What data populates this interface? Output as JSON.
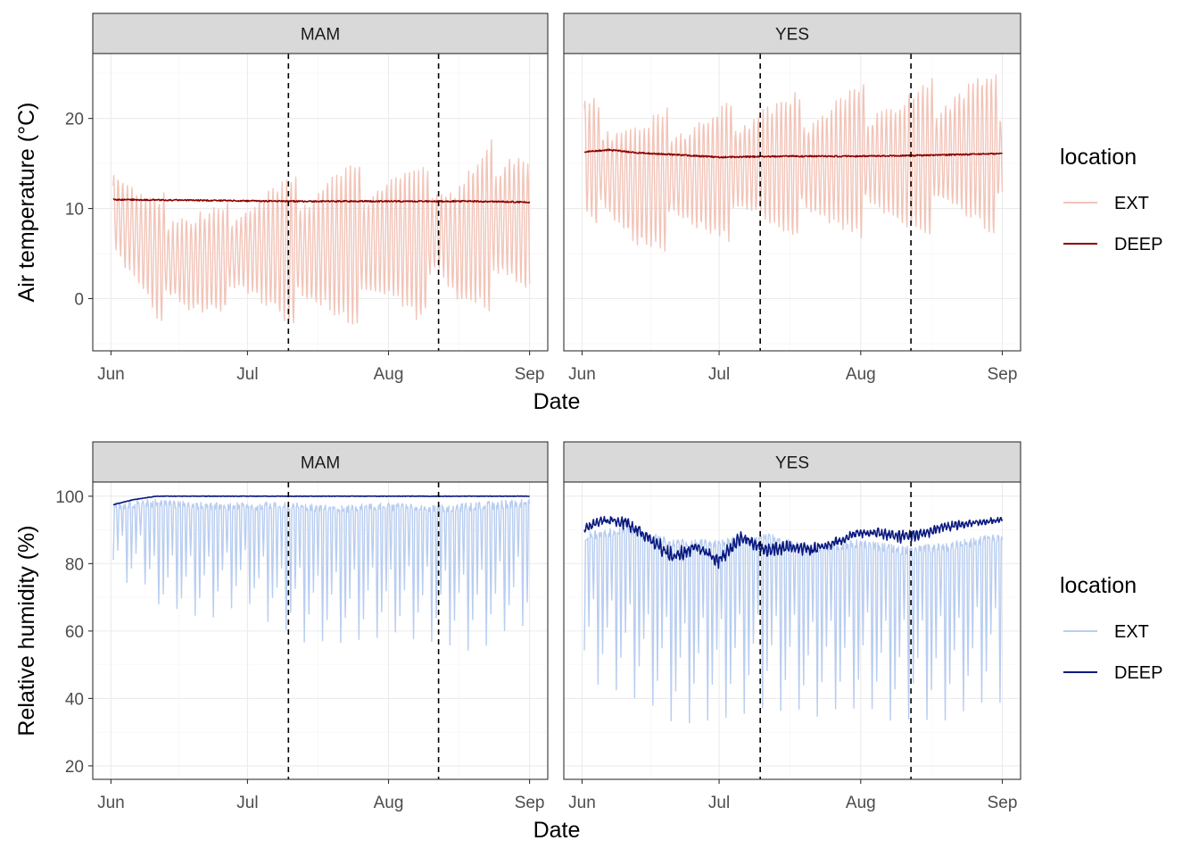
{
  "chart_data": [
    {
      "type": "line",
      "facet": "MAM",
      "xlabel": "Date",
      "ylabel": "Air temperature (°C)",
      "x_ticks": [
        "Jun",
        "Jul",
        "Aug",
        "Sep"
      ],
      "x_tick_days": [
        0,
        30,
        61,
        92
      ],
      "x_range_days": [
        -4,
        96
      ],
      "ylim": [
        -5.8,
        27.2
      ],
      "y_ticks": [
        0,
        10,
        20
      ],
      "vlines_days": [
        39,
        72
      ],
      "legend": {
        "title": "location",
        "entries": [
          "EXT",
          "DEEP"
        ]
      },
      "series": [
        {
          "name": "EXT",
          "color": "#f2c4b8",
          "kind": "oscillating",
          "start_day": 0.5,
          "end_day": 92,
          "base_days": [
            0,
            6,
            10,
            18,
            24,
            30,
            38,
            42,
            48,
            55,
            62,
            68,
            72,
            76,
            82,
            88,
            92
          ],
          "base_values": [
            10,
            7,
            4.5,
            4,
            4.5,
            5.5,
            5.5,
            5,
            6,
            6,
            7,
            6,
            7.5,
            6,
            8,
            9,
            8
          ],
          "amp_values": [
            6,
            5,
            6,
            6,
            5,
            6,
            7,
            7.5,
            8,
            8,
            7.5,
            7.5,
            6,
            7,
            8,
            9,
            8
          ]
        },
        {
          "name": "DEEP",
          "color": "#8b0000",
          "kind": "smooth",
          "start_day": 0.5,
          "end_day": 92,
          "base_days": [
            0,
            20,
            40,
            60,
            80,
            92
          ],
          "base_values": [
            11,
            10.9,
            10.8,
            10.8,
            10.8,
            10.7
          ]
        }
      ]
    },
    {
      "type": "line",
      "facet": "YES",
      "xlabel": "Date",
      "ylabel": "Air temperature (°C)",
      "x_ticks": [
        "Jun",
        "Jul",
        "Aug",
        "Sep"
      ],
      "x_tick_days": [
        0,
        30,
        61,
        92
      ],
      "x_range_days": [
        -4,
        96
      ],
      "ylim": [
        -5.8,
        27.2
      ],
      "y_ticks": [
        0,
        10,
        20
      ],
      "vlines_days": [
        39,
        72
      ],
      "legend": {
        "title": "location",
        "entries": [
          "EXT",
          "DEEP"
        ]
      },
      "series": [
        {
          "name": "EXT",
          "color": "#f2c4b8",
          "kind": "oscillating",
          "start_day": 0.5,
          "end_day": 92,
          "base_days": [
            0,
            6,
            12,
            20,
            30,
            40,
            50,
            60,
            70,
            80,
            86,
            92
          ],
          "base_values": [
            16,
            14,
            12.5,
            13.5,
            14,
            15,
            14.5,
            15.5,
            15,
            16,
            16.5,
            15.5
          ],
          "amp_values": [
            6,
            6.5,
            7,
            6.5,
            6.5,
            7,
            7,
            7.5,
            7.5,
            7.5,
            8,
            8
          ]
        },
        {
          "name": "DEEP",
          "color": "#8b0000",
          "kind": "smooth",
          "start_day": 0.5,
          "end_day": 92,
          "base_days": [
            0,
            6,
            12,
            30,
            45,
            60,
            75,
            92
          ],
          "base_values": [
            16.3,
            16.5,
            16.2,
            15.7,
            15.8,
            15.8,
            15.9,
            16.1
          ]
        }
      ]
    },
    {
      "type": "line",
      "facet": "MAM",
      "xlabel": "Date",
      "ylabel": "Relative humidity (%)",
      "x_ticks": [
        "Jun",
        "Jul",
        "Aug",
        "Sep"
      ],
      "x_tick_days": [
        0,
        30,
        61,
        92
      ],
      "x_range_days": [
        -4,
        96
      ],
      "ylim": [
        16,
        104.2
      ],
      "y_ticks": [
        20,
        40,
        60,
        80,
        100
      ],
      "vlines_days": [
        39,
        72
      ],
      "legend": {
        "title": "location",
        "entries": [
          "EXT",
          "DEEP"
        ]
      },
      "series": [
        {
          "name": "EXT",
          "color": "#b8cdf0",
          "kind": "humid",
          "start_day": 0.5,
          "end_day": 92,
          "base_days": [
            0,
            10,
            20,
            30,
            40,
            50,
            60,
            70,
            80,
            92
          ],
          "base_values": [
            97,
            98,
            97,
            97,
            97,
            96,
            97,
            96,
            97,
            98
          ],
          "amp_values": [
            22,
            28,
            30,
            26,
            36,
            38,
            36,
            36,
            40,
            34
          ]
        },
        {
          "name": "DEEP",
          "color": "#0a1a80",
          "kind": "smooth",
          "start_day": 0.5,
          "end_day": 92,
          "base_days": [
            0,
            5,
            10,
            20,
            40,
            92
          ],
          "base_values": [
            97.3,
            99,
            100,
            100,
            100,
            100
          ]
        }
      ]
    },
    {
      "type": "line",
      "facet": "YES",
      "xlabel": "Date",
      "ylabel": "Relative humidity (%)",
      "x_ticks": [
        "Jun",
        "Jul",
        "Aug",
        "Sep"
      ],
      "x_tick_days": [
        0,
        30,
        61,
        92
      ],
      "x_range_days": [
        -4,
        96
      ],
      "ylim": [
        16,
        104.2
      ],
      "y_ticks": [
        20,
        40,
        60,
        80,
        100
      ],
      "vlines_days": [
        39,
        72
      ],
      "legend": {
        "title": "location",
        "entries": [
          "EXT",
          "DEEP"
        ]
      },
      "series": [
        {
          "name": "EXT",
          "color": "#b8cdf0",
          "kind": "humid",
          "start_day": 0.5,
          "end_day": 92,
          "base_days": [
            0,
            10,
            20,
            30,
            40,
            50,
            60,
            70,
            80,
            92
          ],
          "base_values": [
            88,
            90,
            86,
            86,
            88,
            84,
            86,
            84,
            85,
            88
          ],
          "amp_values": [
            40,
            48,
            52,
            52,
            50,
            50,
            50,
            52,
            54,
            50
          ]
        },
        {
          "name": "DEEP",
          "color": "#0a1a80",
          "kind": "wiggle",
          "start_day": 0.5,
          "end_day": 92,
          "base_days": [
            0,
            5,
            10,
            15,
            20,
            25,
            30,
            35,
            40,
            45,
            50,
            55,
            60,
            65,
            70,
            75,
            80,
            85,
            92
          ],
          "base_values": [
            90,
            93,
            92,
            87,
            82,
            85,
            81,
            88,
            84,
            85,
            84,
            86,
            89,
            89,
            88,
            89,
            91,
            92,
            93
          ],
          "amp_values": [
            1.5,
            1.5,
            2,
            2,
            2.5,
            2,
            2.5,
            2,
            2,
            2,
            2,
            1.5,
            1.5,
            1.5,
            2,
            1.5,
            1.5,
            1,
            1
          ]
        }
      ]
    }
  ]
}
